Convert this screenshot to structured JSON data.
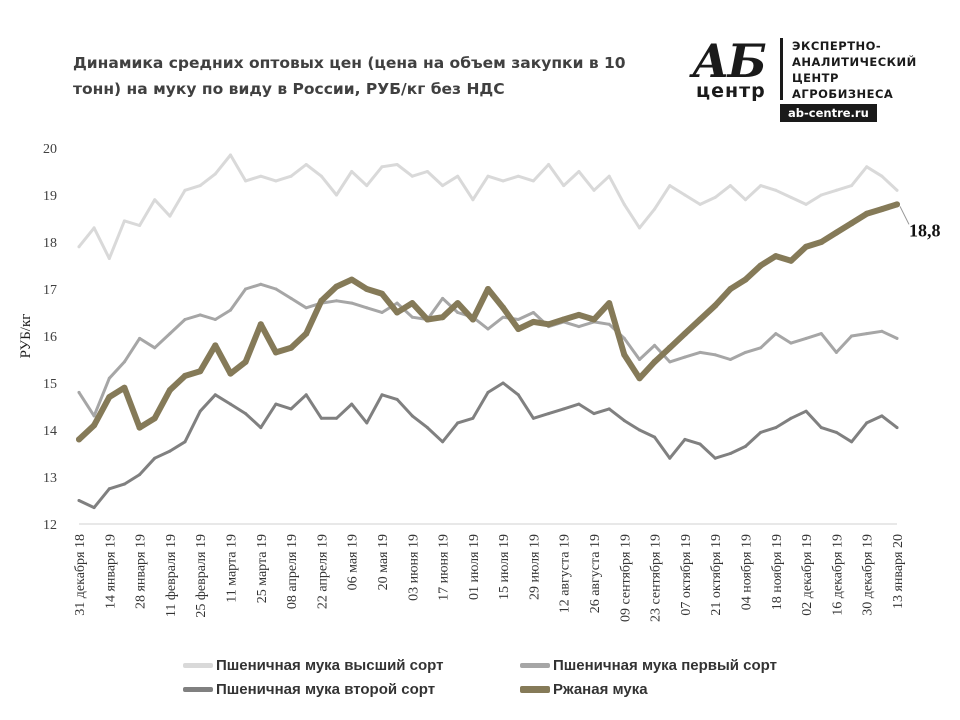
{
  "title": "Динамика средних оптовых цен (цена на объем закупки в 10 тонн) на муку по виду в России, РУБ/кг без НДС",
  "logo": {
    "mark": "АБ",
    "sub": "центр",
    "text_lines": [
      "ЭКСПЕРТНО-",
      "АНАЛИТИЧЕСКИЙ",
      "ЦЕНТР",
      "АГРОБИЗНЕСА"
    ],
    "url": "ab-centre.ru"
  },
  "chart_data": {
    "type": "line",
    "ylabel": "РУБ/кг",
    "ylim": [
      12,
      20
    ],
    "yticks": [
      12,
      13,
      14,
      15,
      16,
      17,
      18,
      19,
      20
    ],
    "grid": false,
    "legend_position": "bottom",
    "x_tick_labels": [
      "31 декабря 18",
      "14 января 19",
      "28 января 19",
      "11 февраля 19",
      "25 февраля 19",
      "11 марта 19",
      "25 марта 19",
      "08 апреля 19",
      "22 апреля 19",
      "06 мая 19",
      "20 мая 19",
      "03 июня 19",
      "17 июня 19",
      "01 июля 19",
      "15 июля 19",
      "29 июля 19",
      "12 августа 19",
      "26 августа 19",
      "09 сентября 19",
      "23 сентября 19",
      "07 октября 19",
      "21 октября 19",
      "04 ноября 19",
      "18 ноября 19",
      "02 декабря 19",
      "16 декабря 19",
      "30 декабря 19",
      "13 января 20"
    ],
    "annotation": {
      "text": "18,8",
      "series": "Ржаная мука"
    },
    "series": [
      {
        "name": "Пшеничная мука высший сорт",
        "color": "#d9d9d9",
        "width": 3,
        "values": [
          17.9,
          18.3,
          17.65,
          18.45,
          18.35,
          18.9,
          18.55,
          19.1,
          19.2,
          19.45,
          19.85,
          19.3,
          19.4,
          19.3,
          19.4,
          19.65,
          19.4,
          19.0,
          19.5,
          19.2,
          19.6,
          19.65,
          19.4,
          19.5,
          19.2,
          19.4,
          18.9,
          19.4,
          19.3,
          19.4,
          19.3,
          19.65,
          19.2,
          19.5,
          19.1,
          19.4,
          18.8,
          18.3,
          18.7,
          19.2,
          19.0,
          18.8,
          18.95,
          19.2,
          18.9,
          19.2,
          19.1,
          18.95,
          18.8,
          19.0,
          19.1,
          19.2,
          19.6,
          19.4,
          19.1
        ]
      },
      {
        "name": "Пшеничная мука первый сорт",
        "color": "#a6a6a6",
        "width": 3,
        "values": [
          14.8,
          14.3,
          15.1,
          15.45,
          15.95,
          15.75,
          16.05,
          16.35,
          16.45,
          16.35,
          16.55,
          17.0,
          17.1,
          17.0,
          16.8,
          16.6,
          16.7,
          16.75,
          16.7,
          16.6,
          16.5,
          16.7,
          16.4,
          16.35,
          16.8,
          16.5,
          16.4,
          16.15,
          16.4,
          16.35,
          16.5,
          16.2,
          16.3,
          16.2,
          16.3,
          16.25,
          15.95,
          15.5,
          15.8,
          15.45,
          15.55,
          15.65,
          15.6,
          15.5,
          15.65,
          15.75,
          16.05,
          15.85,
          15.95,
          16.05,
          15.65,
          16.0,
          16.05,
          16.1,
          15.95
        ]
      },
      {
        "name": "Пшеничная мука второй сорт",
        "color": "#808080",
        "width": 3,
        "values": [
          12.5,
          12.35,
          12.75,
          12.85,
          13.05,
          13.4,
          13.55,
          13.75,
          14.4,
          14.75,
          14.55,
          14.35,
          14.05,
          14.55,
          14.45,
          14.75,
          14.25,
          14.25,
          14.55,
          14.15,
          14.75,
          14.65,
          14.3,
          14.05,
          13.75,
          14.15,
          14.25,
          14.8,
          15.0,
          14.75,
          14.25,
          14.35,
          14.45,
          14.55,
          14.35,
          14.45,
          14.2,
          14.0,
          13.85,
          13.4,
          13.8,
          13.7,
          13.4,
          13.5,
          13.65,
          13.95,
          14.05,
          14.25,
          14.4,
          14.05,
          13.95,
          13.75,
          14.15,
          14.3,
          14.05
        ]
      },
      {
        "name": "Ржаная мука",
        "color": "#857a58",
        "width": 6,
        "values": [
          13.8,
          14.1,
          14.7,
          14.9,
          14.05,
          14.25,
          14.85,
          15.15,
          15.25,
          15.8,
          15.2,
          15.45,
          16.25,
          15.65,
          15.75,
          16.05,
          16.75,
          17.05,
          17.2,
          17.0,
          16.9,
          16.5,
          16.7,
          16.35,
          16.4,
          16.7,
          16.35,
          17.0,
          16.6,
          16.15,
          16.3,
          16.25,
          16.35,
          16.45,
          16.35,
          16.7,
          15.6,
          15.1,
          15.45,
          15.75,
          16.05,
          16.35,
          16.65,
          17.0,
          17.2,
          17.5,
          17.7,
          17.6,
          17.9,
          18.0,
          18.2,
          18.4,
          18.6,
          18.7,
          18.8
        ]
      }
    ]
  }
}
